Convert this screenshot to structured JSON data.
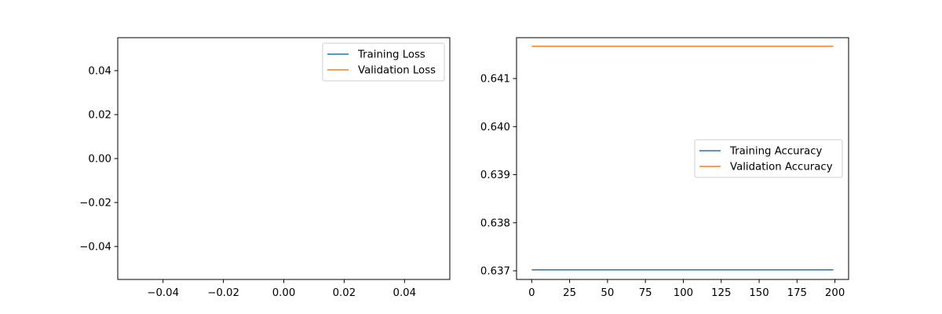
{
  "chart_data": [
    {
      "type": "line",
      "title": "",
      "xlabel": "",
      "ylabel": "",
      "xlim": [
        -0.055,
        0.055
      ],
      "ylim": [
        -0.055,
        0.055
      ],
      "xticks": [
        -0.04,
        -0.02,
        0.0,
        0.02,
        0.04
      ],
      "yticks": [
        -0.04,
        -0.02,
        0.0,
        0.02,
        0.04
      ],
      "xtick_labels": [
        "−0.04",
        "−0.02",
        "0.00",
        "0.02",
        "0.04"
      ],
      "ytick_labels": [
        "−0.04",
        "−0.02",
        "0.00",
        "0.02",
        "0.04"
      ],
      "grid": false,
      "legend_position": "top-right",
      "series": [
        {
          "name": "Training Loss",
          "color": "#1f77b4",
          "x": [],
          "y": []
        },
        {
          "name": "Validation Loss",
          "color": "#ff7f0e",
          "x": [],
          "y": []
        }
      ]
    },
    {
      "type": "line",
      "title": "",
      "xlabel": "",
      "ylabel": "",
      "xlim": [
        -10,
        209
      ],
      "ylim": [
        0.63682,
        0.64185
      ],
      "xticks": [
        0,
        25,
        50,
        75,
        100,
        125,
        150,
        175,
        200
      ],
      "yticks": [
        0.637,
        0.638,
        0.639,
        0.64,
        0.641
      ],
      "xtick_labels": [
        "0",
        "25",
        "50",
        "75",
        "100",
        "125",
        "150",
        "175",
        "200"
      ],
      "ytick_labels": [
        "0.637",
        "0.638",
        "0.639",
        "0.640",
        "0.641"
      ],
      "grid": false,
      "legend_position": "center-right",
      "series": [
        {
          "name": "Training Accuracy",
          "color": "#1f77b4",
          "x": [
            0,
            199
          ],
          "y": [
            0.63702,
            0.63702
          ]
        },
        {
          "name": "Validation Accuracy",
          "color": "#ff7f0e",
          "x": [
            0,
            199
          ],
          "y": [
            0.64167,
            0.64167
          ]
        }
      ]
    }
  ]
}
